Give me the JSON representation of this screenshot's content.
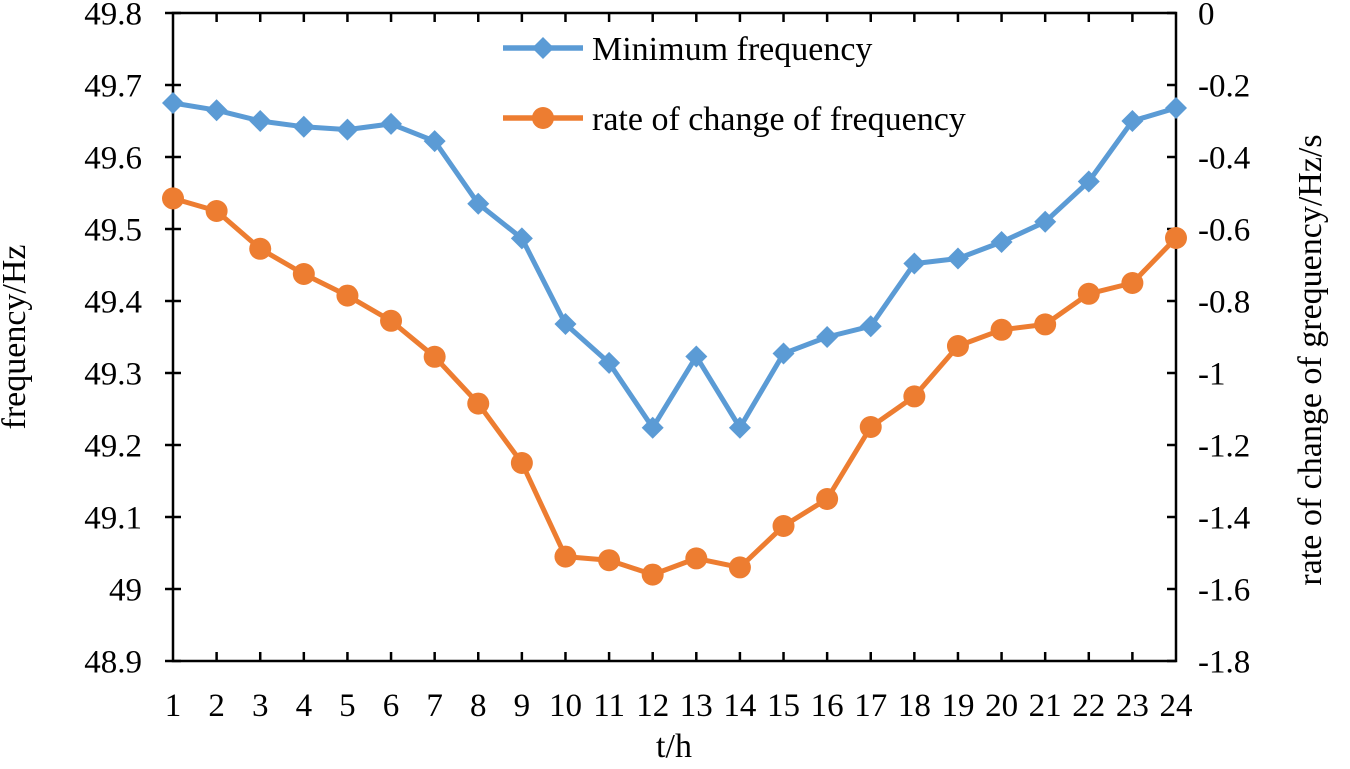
{
  "chart_data": {
    "type": "line",
    "title": "",
    "xlabel": "t/h",
    "ylabel_left": "frequency/Hz",
    "ylabel_right": "rate of change of grequency/Hz/s",
    "xlim": [
      1,
      24
    ],
    "ylim_left": [
      48.9,
      49.8
    ],
    "ylim_right": [
      -1.8,
      0
    ],
    "grid": false,
    "legend_position": "top-center-inside",
    "x": [
      1,
      2,
      3,
      4,
      5,
      6,
      7,
      8,
      9,
      10,
      11,
      12,
      13,
      14,
      15,
      16,
      17,
      18,
      19,
      20,
      21,
      22,
      23,
      24
    ],
    "x_tick_labels": [
      "1",
      "2",
      "3",
      "4",
      "5",
      "6",
      "7",
      "8",
      "9",
      "10",
      "11",
      "12",
      "13",
      "14",
      "15",
      "16",
      "17",
      "18",
      "19",
      "20",
      "21",
      "22",
      "23",
      "24"
    ],
    "left_tick_labels": [
      "49.8",
      "49.7",
      "49.6",
      "49.5",
      "49.4",
      "49.3",
      "49.2",
      "49.1",
      "49",
      "48.9"
    ],
    "left_tick_values": [
      49.8,
      49.7,
      49.6,
      49.5,
      49.4,
      49.3,
      49.2,
      49.1,
      49.0,
      48.9
    ],
    "right_tick_labels": [
      "0",
      "-0.2",
      "-0.4",
      "-0.6",
      "-0.8",
      "-1",
      "-1.2",
      "-1.4",
      "-1.6",
      "-1.8"
    ],
    "right_tick_values": [
      0,
      -0.2,
      -0.4,
      -0.6,
      -0.8,
      -1.0,
      -1.2,
      -1.4,
      -1.6,
      -1.8
    ],
    "series": [
      {
        "name": "Minimum frequency",
        "axis": "left",
        "color": "#5B9BD5",
        "marker": "diamond",
        "values": [
          49.675,
          49.665,
          49.65,
          49.642,
          49.638,
          49.646,
          49.622,
          49.535,
          49.487,
          49.368,
          49.314,
          49.224,
          49.323,
          49.224,
          49.327,
          49.35,
          49.365,
          49.452,
          49.459,
          49.482,
          49.51,
          49.566,
          49.65,
          49.668
        ]
      },
      {
        "name": "rate of change of frequency",
        "axis": "right",
        "color": "#ED7D31",
        "marker": "circle",
        "values": [
          -0.515,
          -0.55,
          -0.655,
          -0.725,
          -0.785,
          -0.855,
          -0.955,
          -1.085,
          -1.25,
          -1.51,
          -1.52,
          -1.56,
          -1.515,
          -1.54,
          -1.425,
          -1.35,
          -1.15,
          -1.065,
          -0.925,
          -0.88,
          -0.865,
          -0.78,
          -0.75,
          -0.625
        ]
      }
    ]
  },
  "colors": {
    "axis": "#000000",
    "background": "#FFFFFF",
    "blue_series": "#5B9BD5",
    "orange_series": "#ED7D31"
  }
}
